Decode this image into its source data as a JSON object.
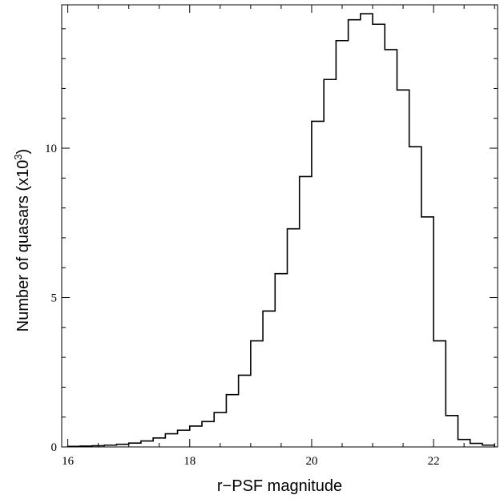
{
  "chart_data": {
    "type": "bar",
    "subtype": "step-histogram",
    "title": "",
    "xlabel": "r−PSF magnitude",
    "ylabel": {
      "text": "Number of quasars (x10",
      "superscript": "3",
      "suffix": ")"
    },
    "xlim": [
      15.9,
      23.05
    ],
    "ylim": [
      0,
      14.8
    ],
    "x_ticks": [
      16,
      18,
      20,
      22
    ],
    "x_minor_step": 0.5,
    "y_ticks": [
      0,
      5,
      10
    ],
    "y_minor_step": 1,
    "bin_edges": [
      16.0,
      16.2,
      16.4,
      16.6,
      16.8,
      17.0,
      17.2,
      17.4,
      17.6,
      17.8,
      18.0,
      18.2,
      18.4,
      18.6,
      18.8,
      19.0,
      19.2,
      19.4,
      19.6,
      19.8,
      20.0,
      20.2,
      20.4,
      20.6,
      20.8,
      21.0,
      21.2,
      21.4,
      21.6,
      21.8,
      22.0,
      22.2,
      22.4,
      22.6,
      22.8,
      23.0
    ],
    "values": [
      0.02,
      0.03,
      0.04,
      0.06,
      0.09,
      0.13,
      0.2,
      0.3,
      0.44,
      0.56,
      0.7,
      0.85,
      1.15,
      1.75,
      2.4,
      3.55,
      4.55,
      5.8,
      7.3,
      9.05,
      10.9,
      12.3,
      13.6,
      14.3,
      14.5,
      14.15,
      13.3,
      11.95,
      10.05,
      7.7,
      3.55,
      1.05,
      0.25,
      0.12,
      0.06
    ],
    "grid": false,
    "line_color": "#000000"
  }
}
